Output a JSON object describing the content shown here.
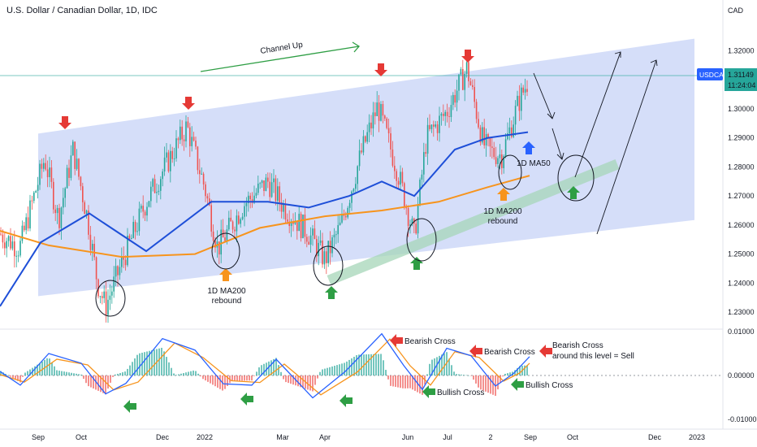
{
  "title": "U.S. Dollar / Canadian Dollar, 1D, IDC",
  "currency": "CAD",
  "price_label": {
    "symbol": "USDCAD",
    "value": "1.31149",
    "countdown": "11:24:04"
  },
  "colors": {
    "price_label": "#2962ff",
    "channel": "#b9c8f5",
    "ma50": "#1e4fd8",
    "ma200": "#f7941d",
    "green": "#2e9e44",
    "red": "#e53935",
    "blue": "#2962ff",
    "up_bar": "#26a69a",
    "down_bar": "#ef5350",
    "macd": "#2962ff",
    "signal": "#f7941d",
    "support": "#a5d6b8"
  },
  "annotations": {
    "channel": "Channel Up",
    "rebound1_line1": "1D MA200",
    "rebound1_line2": "rebound",
    "rebound2_line1": "1D MA200",
    "rebound2_line2": "rebound",
    "ma50": "1D MA50",
    "bearish1": "Bearish Cross",
    "bearish2": "Bearish Cross",
    "bearish3_line1": "Bearish Cross",
    "bearish3_line2": "around this level = Sell",
    "bullish1": "Bullish Cross",
    "bullish2": "Bullish Cross"
  },
  "chart_data": [
    {
      "type": "candlestick",
      "title": "U.S. Dollar / Canadian Dollar, 1D, IDC",
      "x_ticks": [
        "Sep",
        "Oct",
        "Dec",
        "2022",
        "Mar",
        "Apr",
        "Jun",
        "Jul",
        "2",
        "Sep",
        "Oct",
        "Dec",
        "2023"
      ],
      "y_ticks": [
        "1.32000",
        "1.31000",
        "1.30000",
        "1.29000",
        "1.28000",
        "1.27000",
        "1.26000",
        "1.25000",
        "1.24000",
        "1.23000"
      ],
      "ylim": [
        1.2225,
        1.3345
      ],
      "price_path": [
        {
          "x": "Jul 20",
          "y": 1.257
        },
        {
          "x": "Aug 05",
          "y": 1.252
        },
        {
          "x": "Aug 20",
          "y": 1.283
        },
        {
          "x": "Sep 01",
          "y": 1.262
        },
        {
          "x": "Sep 20",
          "y": 1.286
        },
        {
          "x": "Oct 05",
          "y": 1.262
        },
        {
          "x": "Oct 15",
          "y": 1.24
        },
        {
          "x": "Oct 22",
          "y": 1.232
        },
        {
          "x": "Nov 05",
          "y": 1.247
        },
        {
          "x": "Nov 20",
          "y": 1.268
        },
        {
          "x": "Dec 05",
          "y": 1.281
        },
        {
          "x": "Dec 20",
          "y": 1.294
        },
        {
          "x": "Jan 01",
          "y": 1.273
        },
        {
          "x": "Jan 15",
          "y": 1.252
        },
        {
          "x": "Feb 01",
          "y": 1.267
        },
        {
          "x": "Feb 20",
          "y": 1.275
        },
        {
          "x": "Mar 05",
          "y": 1.266
        },
        {
          "x": "Mar 20",
          "y": 1.257
        },
        {
          "x": "Apr 05",
          "y": 1.248
        },
        {
          "x": "Apr 15",
          "y": 1.26
        },
        {
          "x": "May 01",
          "y": 1.285
        },
        {
          "x": "May 12",
          "y": 1.301
        },
        {
          "x": "May 25",
          "y": 1.278
        },
        {
          "x": "Jun 08",
          "y": 1.256
        },
        {
          "x": "Jun 20",
          "y": 1.29
        },
        {
          "x": "Jul 05",
          "y": 1.299
        },
        {
          "x": "Jul 14",
          "y": 1.314
        },
        {
          "x": "Jul 25",
          "y": 1.288
        },
        {
          "x": "Aug 08",
          "y": 1.285
        },
        {
          "x": "Aug 15",
          "y": 1.284
        },
        {
          "x": "Aug 25",
          "y": 1.302
        },
        {
          "x": "Sep 01",
          "y": 1.311
        }
      ],
      "last_price": 1.31149,
      "series": [
        {
          "name": "1D MA50",
          "points": [
            [
              0,
              1.232
            ],
            [
              50,
              1.254
            ],
            [
              110,
              1.264
            ],
            [
              180,
              1.251
            ],
            [
              260,
              1.268
            ],
            [
              330,
              1.268
            ],
            [
              380,
              1.266
            ],
            [
              430,
              1.27
            ],
            [
              470,
              1.275
            ],
            [
              510,
              1.27
            ],
            [
              560,
              1.286
            ],
            [
              600,
              1.29
            ],
            [
              650,
              1.292
            ]
          ]
        },
        {
          "name": "1D MA200",
          "points": [
            [
              0,
              1.258
            ],
            [
              60,
              1.253
            ],
            [
              150,
              1.249
            ],
            [
              240,
              1.25
            ],
            [
              320,
              1.259
            ],
            [
              400,
              1.263
            ],
            [
              470,
              1.265
            ],
            [
              540,
              1.268
            ],
            [
              600,
              1.273
            ],
            [
              652,
              1.277
            ]
          ]
        }
      ],
      "channel": {
        "lower": [
          [
            47,
            1.2355
          ],
          [
            855,
            1.2617
          ]
        ],
        "upper": [
          [
            47,
            1.2915
          ],
          [
            855,
            1.3242
          ]
        ]
      }
    },
    {
      "type": "line",
      "title": "MACD",
      "y_ticks": [
        "0.01000",
        "0.00000",
        "-0.01000"
      ],
      "ylim": [
        -0.0115,
        0.0115
      ],
      "series": [
        {
          "name": "MACD",
          "points": [
            [
              0,
              0.0009
            ],
            [
              25,
              -0.0022
            ],
            [
              60,
              0.005
            ],
            [
              100,
              0.0028
            ],
            [
              130,
              -0.0042
            ],
            [
              155,
              -0.0018
            ],
            [
              200,
              0.0084
            ],
            [
              240,
              0.0058
            ],
            [
              275,
              -0.0019
            ],
            [
              310,
              -0.0022
            ],
            [
              340,
              0.0037
            ],
            [
              385,
              -0.0051
            ],
            [
              425,
              0.0009
            ],
            [
              470,
              0.0095
            ],
            [
              497,
              0.0023
            ],
            [
              520,
              -0.0032
            ],
            [
              550,
              0.0062
            ],
            [
              580,
              0.0045
            ],
            [
              610,
              -0.0024
            ],
            [
              632,
              0.0004
            ],
            [
              652,
              0.0043
            ]
          ]
        },
        {
          "name": "Signal",
          "points": [
            [
              0,
              0.0002
            ],
            [
              30,
              -0.0015
            ],
            [
              70,
              0.0037
            ],
            [
              108,
              0.0024
            ],
            [
              140,
              -0.0033
            ],
            [
              170,
              -0.0015
            ],
            [
              215,
              0.0074
            ],
            [
              250,
              0.0041
            ],
            [
              285,
              -0.0012
            ],
            [
              320,
              -0.0016
            ],
            [
              350,
              0.0026
            ],
            [
              395,
              -0.0044
            ],
            [
              440,
              0.0008
            ],
            [
              480,
              0.0083
            ],
            [
              505,
              0.0022
            ],
            [
              530,
              -0.0022
            ],
            [
              560,
              0.0054
            ],
            [
              590,
              0.0041
            ],
            [
              620,
              -0.0013
            ],
            [
              640,
              0.0006
            ],
            [
              652,
              0.0028
            ]
          ]
        }
      ]
    }
  ]
}
